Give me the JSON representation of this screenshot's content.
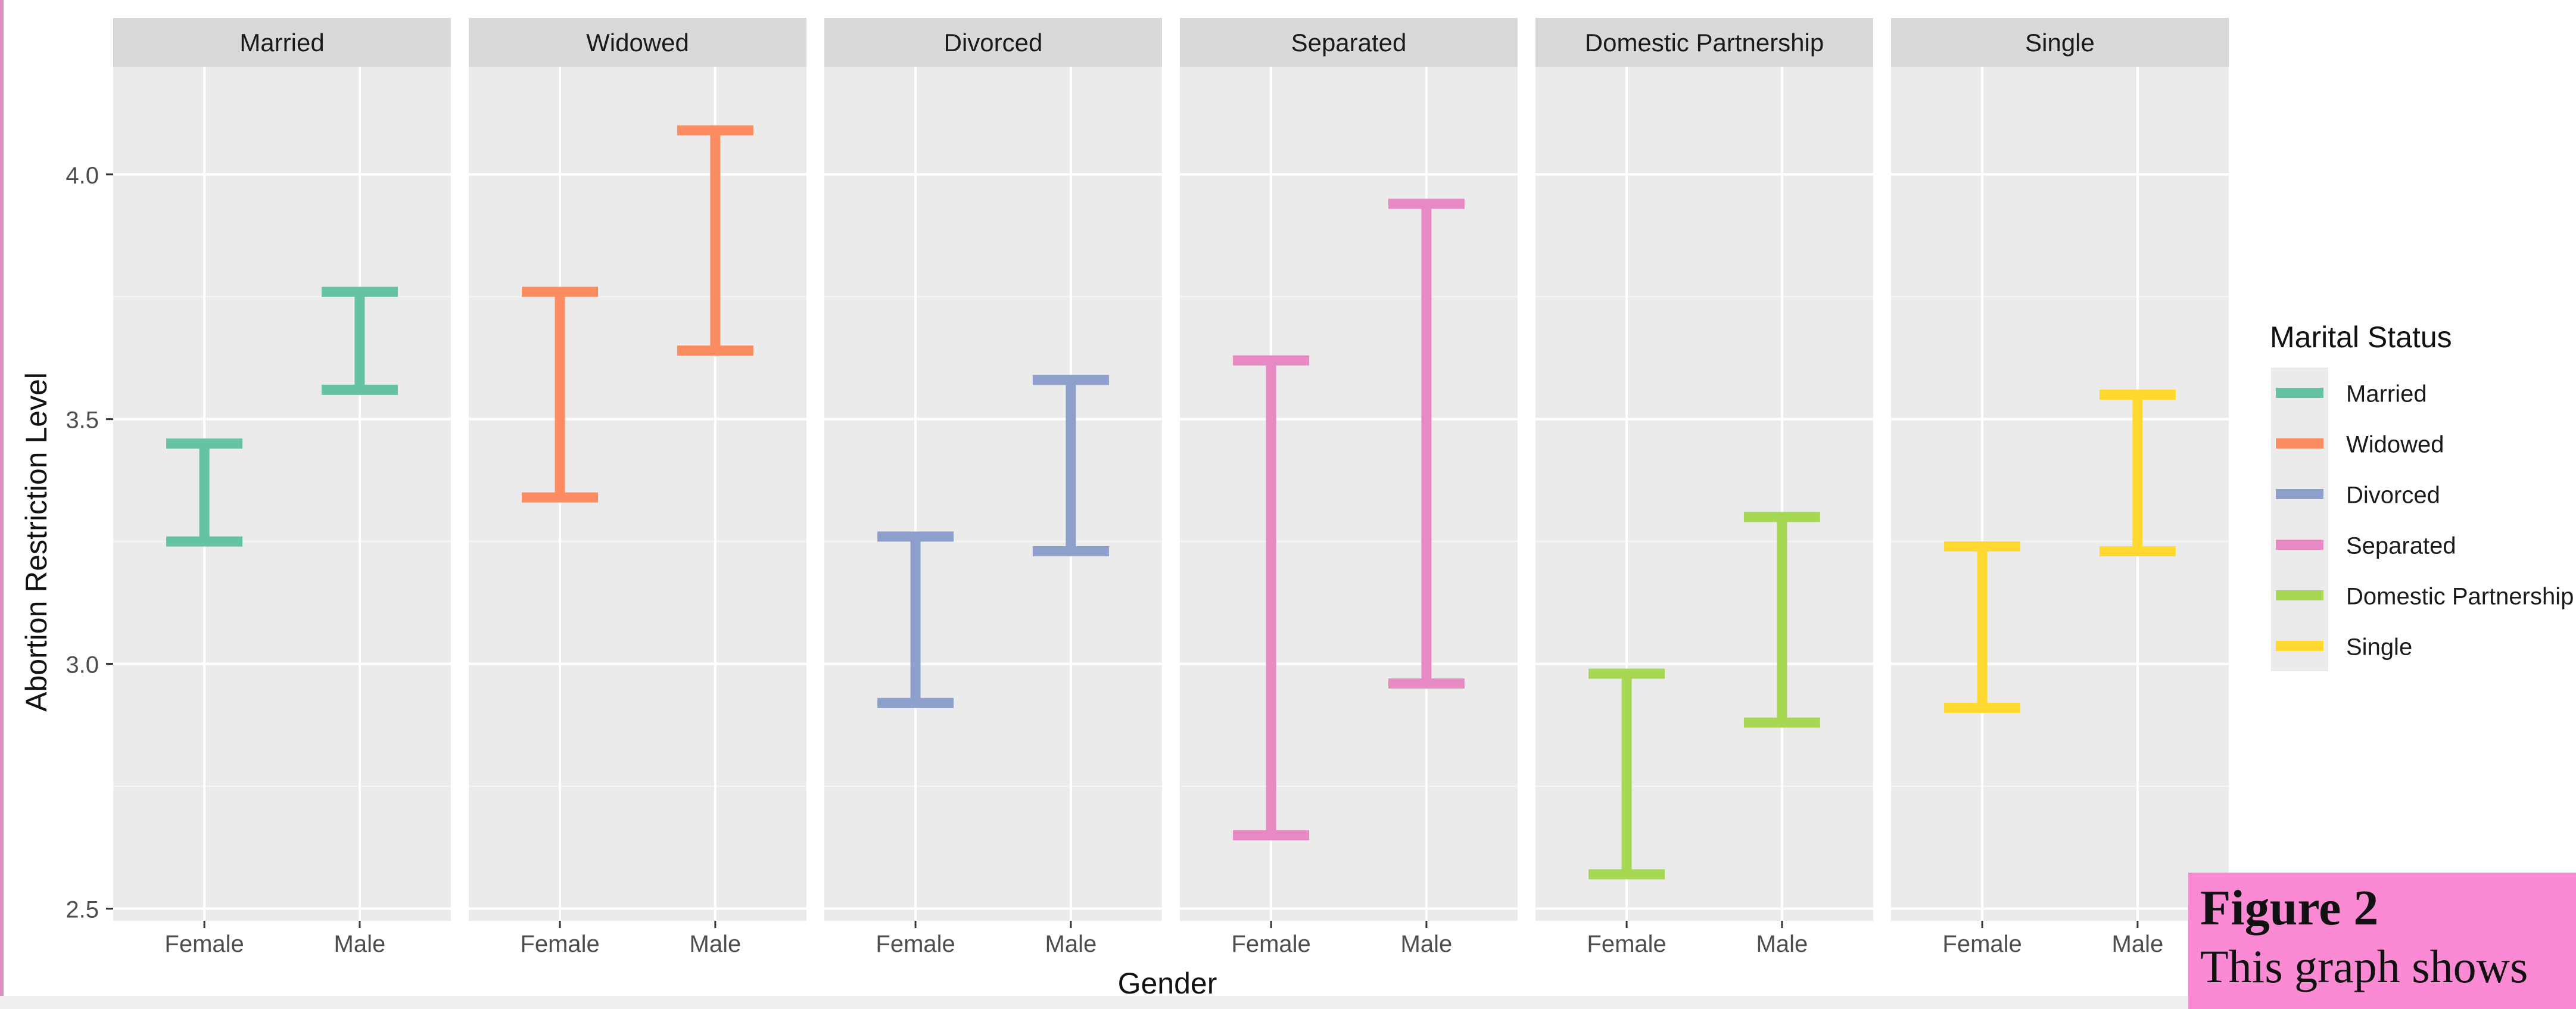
{
  "chart_data": {
    "type": "errorbar",
    "ylabel": "Abortion Restriction Level",
    "xlabel": "Gender",
    "ylim": [
      2.475,
      4.22
    ],
    "yticks": [
      2.5,
      3.0,
      3.5,
      4.0
    ],
    "ytick_labels": [
      "2.5",
      "3.0",
      "3.5",
      "4.0"
    ],
    "categories": [
      "Female",
      "Male"
    ],
    "grid": true,
    "legend": {
      "title": "Marital Status",
      "placement": "right",
      "entries": [
        "Married",
        "Widowed",
        "Divorced",
        "Separated",
        "Domestic Partnership",
        "Single"
      ]
    },
    "panels": [
      {
        "name": "Married",
        "color": "#66c2a5",
        "bars": [
          {
            "x": "Female",
            "low": 3.25,
            "high": 3.45
          },
          {
            "x": "Male",
            "low": 3.56,
            "high": 3.76
          }
        ]
      },
      {
        "name": "Widowed",
        "color": "#fc8d62",
        "bars": [
          {
            "x": "Female",
            "low": 3.34,
            "high": 3.76
          },
          {
            "x": "Male",
            "low": 3.64,
            "high": 4.09
          }
        ]
      },
      {
        "name": "Divorced",
        "color": "#8da0cb",
        "bars": [
          {
            "x": "Female",
            "low": 2.92,
            "high": 3.26
          },
          {
            "x": "Male",
            "low": 3.23,
            "high": 3.58
          }
        ]
      },
      {
        "name": "Separated",
        "color": "#e78ac3",
        "bars": [
          {
            "x": "Female",
            "low": 2.65,
            "high": 3.62
          },
          {
            "x": "Male",
            "low": 2.96,
            "high": 3.94
          }
        ]
      },
      {
        "name": "Domestic Partnership",
        "color": "#a6d854",
        "bars": [
          {
            "x": "Female",
            "low": 2.57,
            "high": 2.98
          },
          {
            "x": "Male",
            "low": 2.88,
            "high": 3.3
          }
        ]
      },
      {
        "name": "Single",
        "color": "#ffd92f",
        "bars": [
          {
            "x": "Female",
            "low": 2.91,
            "high": 3.24
          },
          {
            "x": "Male",
            "low": 3.23,
            "high": 3.55
          }
        ]
      }
    ]
  },
  "caption": {
    "title": "Figure 2",
    "text": "This graph shows"
  }
}
